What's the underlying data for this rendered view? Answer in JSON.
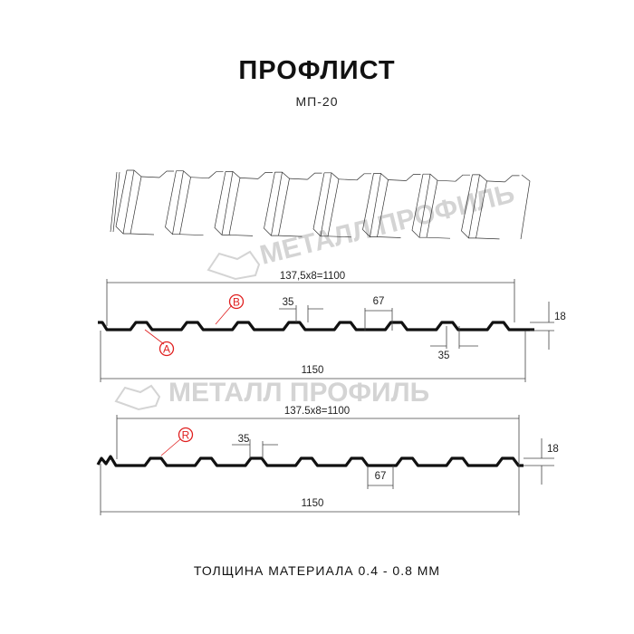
{
  "header": {
    "title": "ПРОФЛИСТ",
    "subtitle": "МП-20"
  },
  "watermark": "МЕТАЛЛ ПРОФИЛЬ",
  "profile_a": {
    "pitch_label": "137,5x8=1100",
    "width_label": "1150",
    "top_width": "35",
    "bottom_width": "67",
    "rib_top_width_bottom": "35",
    "height": "18",
    "marks": [
      "B",
      "A"
    ]
  },
  "profile_r": {
    "pitch_label": "137.5x8=1100",
    "width_label": "1150",
    "top_width": "35",
    "bottom_width": "67",
    "height": "18",
    "marks": [
      "R"
    ]
  },
  "footer": "ТОЛЩИНА МАТЕРИАЛА 0.4 - 0.8 ММ",
  "colors": {
    "accent": "#e02020",
    "line": "#111111",
    "watermark": "#d4d4d4"
  }
}
